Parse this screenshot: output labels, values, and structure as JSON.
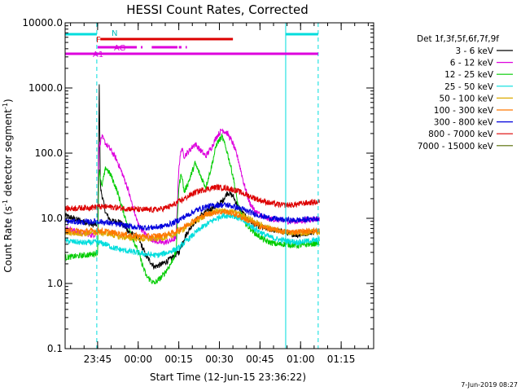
{
  "chart_data": {
    "type": "line",
    "title": "HESSI Count Rates, Corrected",
    "xlabel": "Start Time (12-Jun-15 23:36:22)",
    "ylabel_main": "Count Rate (s",
    "ylabel_sup1": "-1",
    "ylabel_mid": " detector segment",
    "ylabel_sup2": "-1",
    "ylabel_end": ")",
    "y_scale": "log",
    "ylim": [
      0.1,
      10000
    ],
    "xlim_minutes": [
      -12,
      102
    ],
    "y_ticks": [
      {
        "v": 10000,
        "label": "10000.0"
      },
      {
        "v": 1000,
        "label": "1000.0"
      },
      {
        "v": 100,
        "label": "100.0"
      },
      {
        "v": 10,
        "label": "10.0"
      },
      {
        "v": 1,
        "label": "1.0"
      },
      {
        "v": 0.1,
        "label": "0.1"
      }
    ],
    "x_ticks": [
      {
        "m": 0,
        "label": "23:45"
      },
      {
        "m": 15,
        "label": "00:00"
      },
      {
        "m": 30,
        "label": "00:15"
      },
      {
        "m": 45,
        "label": "00:30"
      },
      {
        "m": 60,
        "label": "00:45"
      },
      {
        "m": 75,
        "label": "01:00"
      },
      {
        "m": 90,
        "label": "01:15"
      }
    ],
    "legend_title": "Det 1f,3f,5f,6f,7f,9f",
    "legend_position": "right",
    "timestamp": "7-Jun-2019 08:27",
    "attenuator_labels": {
      "N": "N",
      "F": "F",
      "AG": "AG",
      "A1": "A1"
    },
    "attenuator_bars": [
      {
        "label_key": "N",
        "color": "#00dddd",
        "start": -12,
        "end": -0.3
      },
      {
        "label_key": "N",
        "color": "#00dddd",
        "start": 69.5,
        "end": 81.5
      },
      {
        "label_key": "F",
        "color": "#dd0000",
        "start": 1,
        "end": 50
      },
      {
        "label_key": "AG",
        "color": "#dd00dd",
        "start": 0,
        "end": 14.5
      },
      {
        "label_key": "AG",
        "color": "#dd00dd",
        "start": 16,
        "end": 16.6
      },
      {
        "label_key": "AG",
        "color": "#dd00dd",
        "start": 20,
        "end": 29.5
      },
      {
        "label_key": "AG",
        "color": "#dd00dd",
        "start": 30,
        "end": 31
      },
      {
        "label_key": "AG",
        "color": "#dd00dd",
        "start": 32.5,
        "end": 33
      },
      {
        "label_key": "A1",
        "color": "#dd00dd",
        "start": -12,
        "end": 81.5
      }
    ],
    "vertical_lines": [
      {
        "m": -0.3,
        "color": "#00dddd",
        "style": "dashed"
      },
      {
        "m": 69.5,
        "color": "#00dddd",
        "style": "solid"
      },
      {
        "m": 81.5,
        "color": "#00dddd",
        "style": "dashed"
      }
    ],
    "series": [
      {
        "name": "3 - 6 keV",
        "color": "#000000",
        "points": [
          [
            -12,
            11
          ],
          [
            -2,
            8
          ],
          [
            0,
            8
          ],
          [
            0.3,
            60
          ],
          [
            0.6,
            1200
          ],
          [
            1,
            30
          ],
          [
            3,
            12
          ],
          [
            5,
            9
          ],
          [
            8,
            9
          ],
          [
            12,
            6
          ],
          [
            15,
            5
          ],
          [
            18,
            2.6
          ],
          [
            21,
            1.8
          ],
          [
            24,
            2.0
          ],
          [
            27,
            2.4
          ],
          [
            30,
            3.0
          ],
          [
            32,
            5
          ],
          [
            35,
            8
          ],
          [
            38,
            11
          ],
          [
            42,
            14
          ],
          [
            46,
            18
          ],
          [
            48,
            25
          ],
          [
            50,
            22
          ],
          [
            52,
            15
          ],
          [
            55,
            10
          ],
          [
            58,
            8
          ],
          [
            62,
            7
          ],
          [
            66,
            6.5
          ],
          [
            70,
            6
          ],
          [
            74,
            5.5
          ],
          [
            78,
            6
          ],
          [
            82,
            6.5
          ]
        ]
      },
      {
        "name": "6 - 12 keV",
        "color": "#dd00dd",
        "points": [
          [
            -12,
            7
          ],
          [
            -2,
            5.5
          ],
          [
            0,
            6
          ],
          [
            0.5,
            120
          ],
          [
            1.5,
            180
          ],
          [
            3,
            140
          ],
          [
            5,
            110
          ],
          [
            7,
            80
          ],
          [
            9,
            50
          ],
          [
            11,
            30
          ],
          [
            13,
            15
          ],
          [
            15,
            8
          ],
          [
            18,
            5.5
          ],
          [
            21,
            4.5
          ],
          [
            24,
            4.2
          ],
          [
            27,
            4.5
          ],
          [
            29,
            5
          ],
          [
            30,
            60
          ],
          [
            31,
            120
          ],
          [
            32,
            90
          ],
          [
            34,
            110
          ],
          [
            36,
            140
          ],
          [
            38,
            110
          ],
          [
            40,
            90
          ],
          [
            42,
            120
          ],
          [
            44,
            180
          ],
          [
            46,
            230
          ],
          [
            48,
            200
          ],
          [
            50,
            140
          ],
          [
            52,
            80
          ],
          [
            54,
            35
          ],
          [
            56,
            18
          ],
          [
            58,
            13
          ],
          [
            62,
            10
          ],
          [
            66,
            9.5
          ],
          [
            70,
            9
          ],
          [
            74,
            9
          ],
          [
            78,
            9.5
          ],
          [
            82,
            10
          ]
        ]
      },
      {
        "name": "12 - 25 keV",
        "color": "#00cc00",
        "points": [
          [
            -12,
            2.5
          ],
          [
            -2,
            2.8
          ],
          [
            0,
            3.0
          ],
          [
            0.5,
            60
          ],
          [
            1.5,
            30
          ],
          [
            3,
            60
          ],
          [
            5,
            45
          ],
          [
            7,
            28
          ],
          [
            9,
            15
          ],
          [
            11,
            8
          ],
          [
            13,
            5
          ],
          [
            15,
            3
          ],
          [
            18,
            1.3
          ],
          [
            21,
            1.0
          ],
          [
            24,
            1.3
          ],
          [
            27,
            2
          ],
          [
            29,
            3
          ],
          [
            30,
            30
          ],
          [
            31,
            50
          ],
          [
            32,
            25
          ],
          [
            34,
            40
          ],
          [
            36,
            70
          ],
          [
            38,
            45
          ],
          [
            40,
            30
          ],
          [
            42,
            60
          ],
          [
            44,
            140
          ],
          [
            46,
            180
          ],
          [
            48,
            100
          ],
          [
            50,
            45
          ],
          [
            52,
            15
          ],
          [
            55,
            8
          ],
          [
            58,
            6
          ],
          [
            62,
            4.5
          ],
          [
            66,
            4
          ],
          [
            70,
            4
          ],
          [
            74,
            3.8
          ],
          [
            78,
            4
          ],
          [
            82,
            4.2
          ]
        ]
      },
      {
        "name": "25 - 50 keV",
        "color": "#00dddd",
        "points": [
          [
            -12,
            4.5
          ],
          [
            -5,
            4.2
          ],
          [
            0,
            4.3
          ],
          [
            3,
            4.0
          ],
          [
            6,
            3.5
          ],
          [
            10,
            3.2
          ],
          [
            14,
            3.0
          ],
          [
            18,
            2.8
          ],
          [
            22,
            2.7
          ],
          [
            26,
            3.0
          ],
          [
            30,
            3.5
          ],
          [
            34,
            5
          ],
          [
            38,
            7
          ],
          [
            42,
            9
          ],
          [
            46,
            11
          ],
          [
            50,
            11
          ],
          [
            54,
            9
          ],
          [
            58,
            7
          ],
          [
            62,
            5.5
          ],
          [
            66,
            4.8
          ],
          [
            70,
            4.5
          ],
          [
            74,
            4.3
          ],
          [
            78,
            4.5
          ],
          [
            82,
            4.6
          ]
        ]
      },
      {
        "name": "50 - 100 keV",
        "color": "#ddaa00",
        "points": [
          [
            -12,
            6
          ],
          [
            -5,
            5.8
          ],
          [
            0,
            6.0
          ],
          [
            4,
            5.8
          ],
          [
            8,
            5.2
          ],
          [
            12,
            5
          ],
          [
            16,
            4.8
          ],
          [
            20,
            4.8
          ],
          [
            24,
            5
          ],
          [
            28,
            5.5
          ],
          [
            32,
            7
          ],
          [
            36,
            9
          ],
          [
            40,
            11
          ],
          [
            44,
            13
          ],
          [
            48,
            13
          ],
          [
            52,
            12
          ],
          [
            56,
            10
          ],
          [
            60,
            8
          ],
          [
            64,
            7
          ],
          [
            68,
            6.3
          ],
          [
            72,
            6
          ],
          [
            76,
            6
          ],
          [
            82,
            6.2
          ]
        ]
      },
      {
        "name": "100 - 300 keV",
        "color": "#ff7700",
        "points": [
          [
            -12,
            6.5
          ],
          [
            -5,
            6.3
          ],
          [
            0,
            6.5
          ],
          [
            4,
            6.2
          ],
          [
            8,
            5.8
          ],
          [
            12,
            5.5
          ],
          [
            16,
            5.3
          ],
          [
            20,
            5.3
          ],
          [
            24,
            5.5
          ],
          [
            28,
            6
          ],
          [
            32,
            7.5
          ],
          [
            36,
            9.5
          ],
          [
            40,
            11.5
          ],
          [
            44,
            12.5
          ],
          [
            48,
            12.5
          ],
          [
            52,
            11
          ],
          [
            56,
            9
          ],
          [
            60,
            7.5
          ],
          [
            64,
            6.8
          ],
          [
            68,
            6.3
          ],
          [
            72,
            6.2
          ],
          [
            76,
            6.3
          ],
          [
            82,
            6.5
          ]
        ]
      },
      {
        "name": "300 - 800 keV",
        "color": "#0000dd",
        "points": [
          [
            -12,
            9
          ],
          [
            -5,
            8.7
          ],
          [
            0,
            9
          ],
          [
            4,
            8.5
          ],
          [
            8,
            8
          ],
          [
            12,
            7.5
          ],
          [
            16,
            7.2
          ],
          [
            20,
            7.2
          ],
          [
            24,
            7.5
          ],
          [
            28,
            8.5
          ],
          [
            32,
            10.5
          ],
          [
            36,
            13
          ],
          [
            40,
            15
          ],
          [
            44,
            16
          ],
          [
            48,
            16
          ],
          [
            52,
            14.5
          ],
          [
            56,
            12.5
          ],
          [
            60,
            11
          ],
          [
            64,
            10
          ],
          [
            68,
            9.5
          ],
          [
            72,
            9.3
          ],
          [
            76,
            9.5
          ],
          [
            82,
            10
          ]
        ]
      },
      {
        "name": "800 - 7000 keV",
        "color": "#dd0000",
        "points": [
          [
            -12,
            14
          ],
          [
            -5,
            14.5
          ],
          [
            0,
            15
          ],
          [
            4,
            15
          ],
          [
            8,
            14.5
          ],
          [
            12,
            14
          ],
          [
            16,
            13.5
          ],
          [
            20,
            13.5
          ],
          [
            24,
            14
          ],
          [
            28,
            16
          ],
          [
            32,
            20
          ],
          [
            36,
            25
          ],
          [
            40,
            28
          ],
          [
            44,
            30
          ],
          [
            48,
            29
          ],
          [
            52,
            26
          ],
          [
            56,
            22
          ],
          [
            60,
            19
          ],
          [
            64,
            17
          ],
          [
            68,
            16
          ],
          [
            72,
            16
          ],
          [
            76,
            17
          ],
          [
            82,
            18
          ]
        ]
      },
      {
        "name": "7000 - 15000 keV",
        "color": "#556b00",
        "points": []
      }
    ]
  }
}
